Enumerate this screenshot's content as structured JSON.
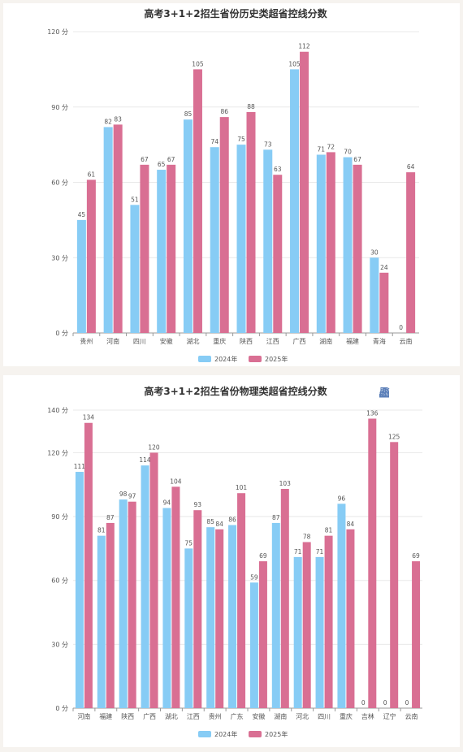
{
  "colors": {
    "s2024": "#87ccf5",
    "s2025": "#d96f93",
    "grid": "#e8e8e8",
    "axis": "#999999",
    "text": "#555555"
  },
  "toolbar": {
    "icons": [
      "data-view-icon",
      "line-switch-icon",
      "bar-switch-icon",
      "restore-icon",
      "download-icon"
    ]
  },
  "chart_data": [
    {
      "type": "bar",
      "title": "高考3+1+2招生省份历史类超省控线分数",
      "categories": [
        "贵州",
        "河南",
        "四川",
        "安徽",
        "湖北",
        "重庆",
        "陕西",
        "江西",
        "广西",
        "湖南",
        "福建",
        "青海",
        "云南"
      ],
      "series": [
        {
          "name": "2024年",
          "values": [
            45,
            82,
            51,
            65,
            85,
            74,
            75,
            73,
            105,
            71,
            70,
            30,
            0
          ]
        },
        {
          "name": "2025年",
          "values": [
            61,
            83,
            67,
            67,
            105,
            86,
            88,
            63,
            112,
            72,
            67,
            24,
            64
          ]
        }
      ],
      "ylim": [
        0,
        120
      ],
      "yticks": [
        "0 分",
        "30 分",
        "60 分",
        "90 分",
        "120 分"
      ],
      "ytick_values": [
        0,
        30,
        60,
        90,
        120
      ],
      "legend": "bottom-center"
    },
    {
      "type": "bar",
      "title": "高考3+1+2招生省份物理类超省控线分数",
      "categories": [
        "河南",
        "福建",
        "陕西",
        "广西",
        "湖北",
        "江西",
        "贵州",
        "广东",
        "安徽",
        "湖南",
        "河北",
        "四川",
        "重庆",
        "吉林",
        "辽宁",
        "云南"
      ],
      "series": [
        {
          "name": "2024年",
          "values": [
            111,
            81,
            98,
            114,
            94,
            75,
            85,
            86,
            59,
            87,
            71,
            71,
            96,
            0,
            0,
            0
          ]
        },
        {
          "name": "2025年",
          "values": [
            134,
            87,
            97,
            120,
            104,
            93,
            84,
            101,
            69,
            103,
            78,
            81,
            84,
            136,
            125,
            69
          ]
        }
      ],
      "ylim": [
        0,
        140
      ],
      "yticks": [
        "0 分",
        "30 分",
        "60 分",
        "90 分",
        "120 分",
        "140 分"
      ],
      "ytick_values": [
        0,
        30,
        60,
        90,
        120,
        140
      ],
      "legend": "bottom-center"
    }
  ]
}
